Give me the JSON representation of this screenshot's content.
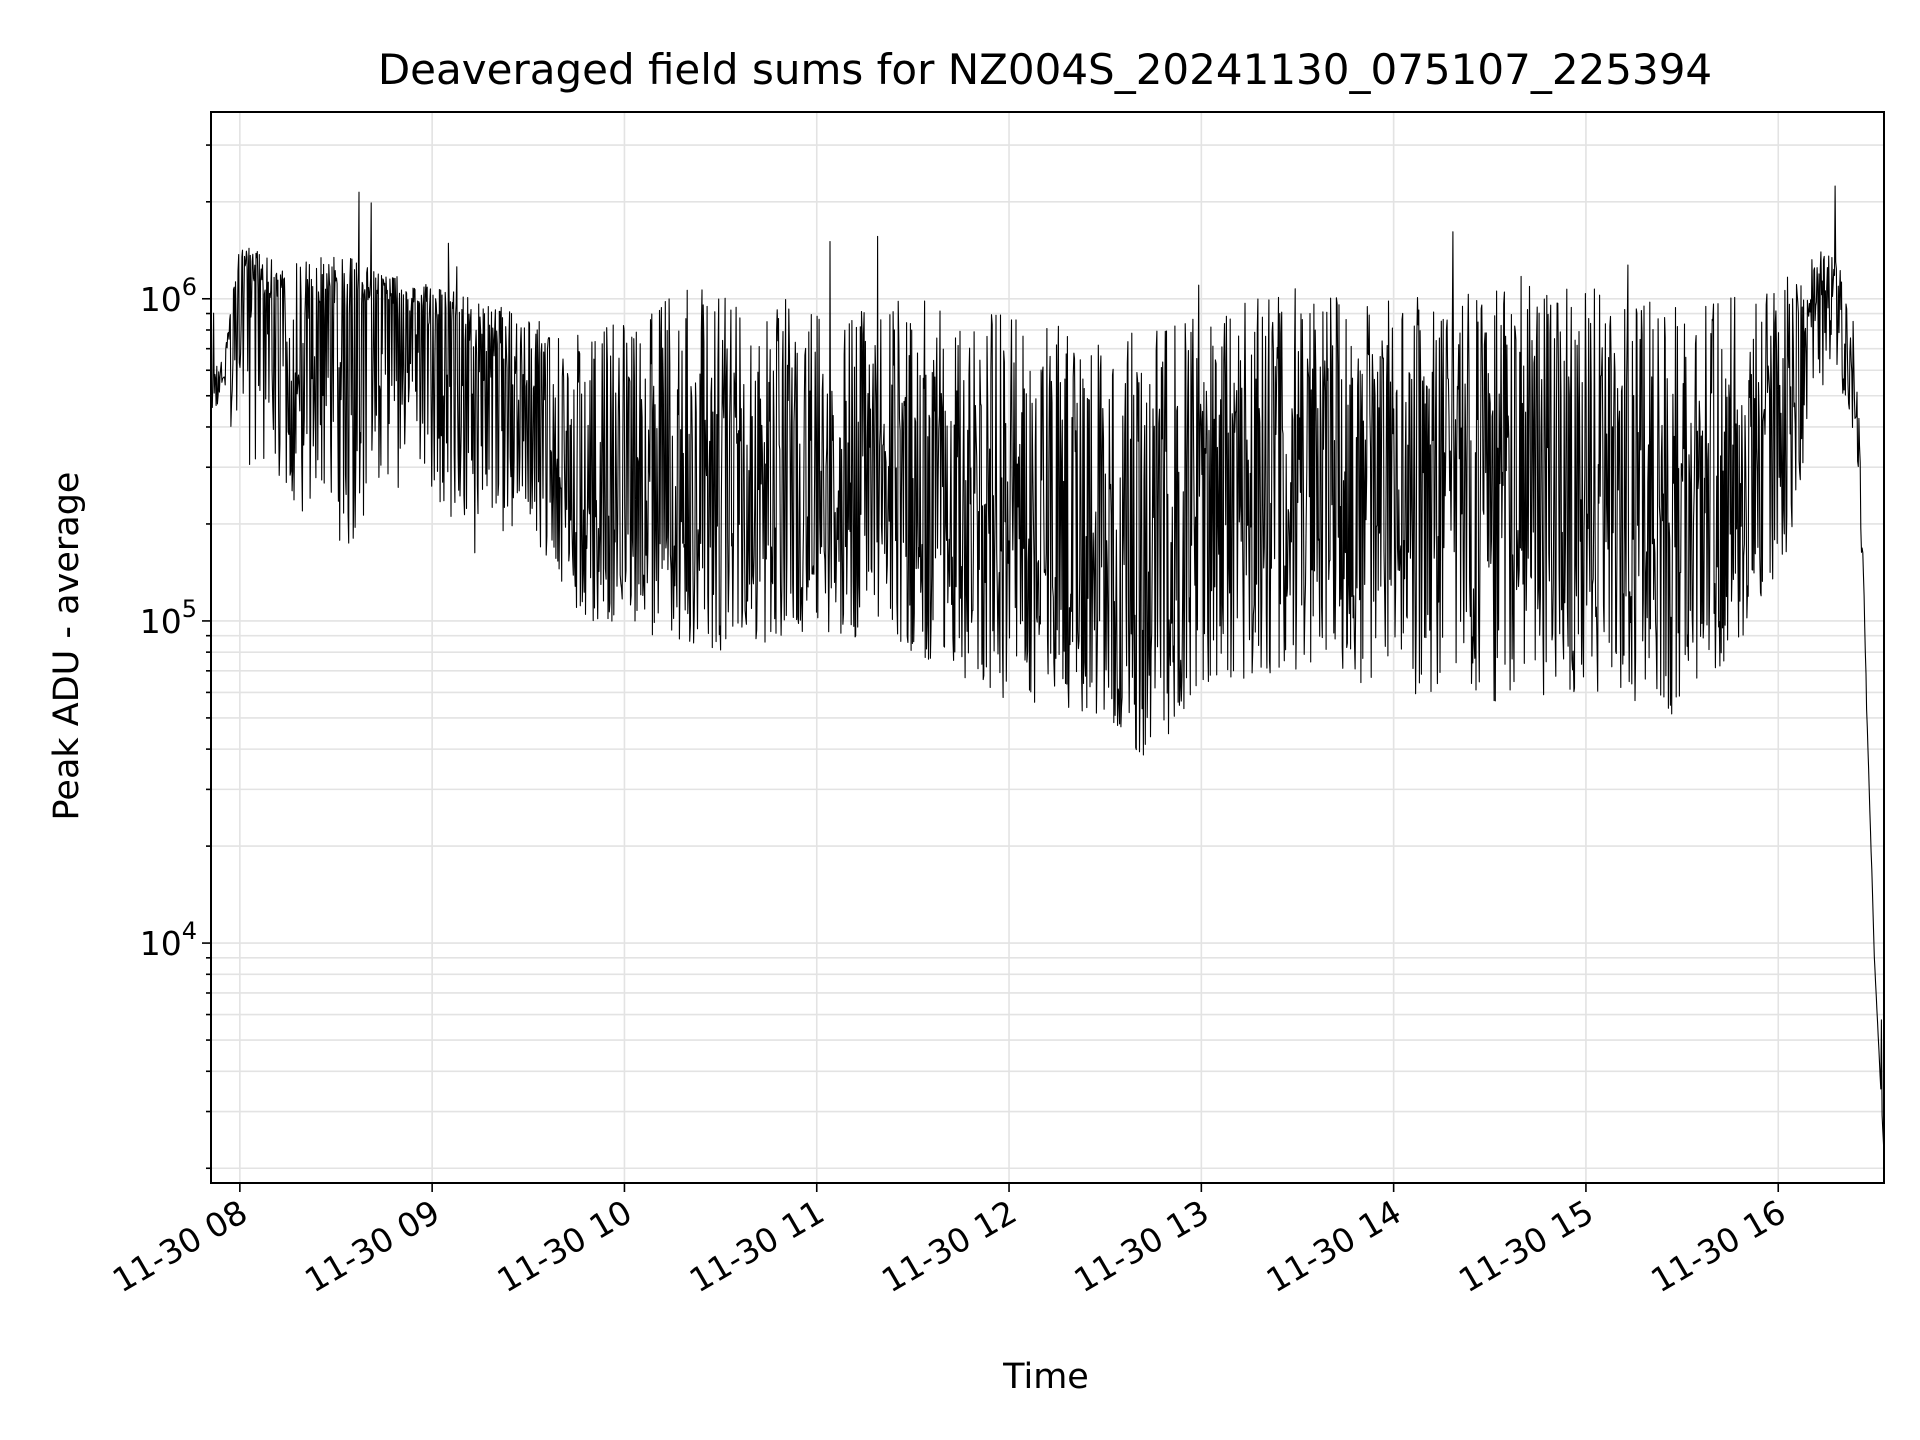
{
  "chart_data": {
    "type": "line",
    "title": "Deaveraged field sums for NZ004S_20241130_075107_225394",
    "xlabel": "Time",
    "ylabel": "Peak ADU - average",
    "yscale": "log",
    "ylim": [
      1800,
      3800000
    ],
    "xlim": [
      "2024-11-30 07:51",
      "2024-11-30 16:33"
    ],
    "x_ticks": [
      {
        "value": "2024-11-30 08:00",
        "label": "11-30 08"
      },
      {
        "value": "2024-11-30 09:00",
        "label": "11-30 09"
      },
      {
        "value": "2024-11-30 10:00",
        "label": "11-30 10"
      },
      {
        "value": "2024-11-30 11:00",
        "label": "11-30 11"
      },
      {
        "value": "2024-11-30 12:00",
        "label": "11-30 12"
      },
      {
        "value": "2024-11-30 13:00",
        "label": "11-30 13"
      },
      {
        "value": "2024-11-30 14:00",
        "label": "11-30 14"
      },
      {
        "value": "2024-11-30 15:00",
        "label": "11-30 15"
      },
      {
        "value": "2024-11-30 16:00",
        "label": "11-30 16"
      }
    ],
    "y_ticks": [
      {
        "value": 10000,
        "base": "10",
        "exp": "4"
      },
      {
        "value": 100000,
        "base": "10",
        "exp": "5"
      },
      {
        "value": 1000000,
        "base": "10",
        "exp": "6"
      }
    ],
    "grid": true,
    "series": [
      {
        "color": "#000000",
        "x": [
          "2024-11-30 07:51",
          "2024-11-30 07:55",
          "2024-11-30 08:00",
          "2024-11-30 08:15",
          "2024-11-30 08:30",
          "2024-11-30 08:45",
          "2024-11-30 09:00",
          "2024-11-30 09:15",
          "2024-11-30 09:30",
          "2024-11-30 09:45",
          "2024-11-30 10:00",
          "2024-11-30 10:30",
          "2024-11-30 11:00",
          "2024-11-30 11:30",
          "2024-11-30 12:00",
          "2024-11-30 12:30",
          "2024-11-30 12:45",
          "2024-11-30 13:00",
          "2024-11-30 13:30",
          "2024-11-30 14:00",
          "2024-11-30 14:30",
          "2024-11-30 15:00",
          "2024-11-30 15:30",
          "2024-11-30 16:00",
          "2024-11-30 16:15",
          "2024-11-30 16:20",
          "2024-11-30 16:25",
          "2024-11-30 16:28",
          "2024-11-30 16:30",
          "2024-11-30 16:33"
        ],
        "y": [
          500000,
          550000,
          1300000,
          700000,
          900000,
          1000000,
          800000,
          600000,
          450000,
          300000,
          250000,
          200000,
          220000,
          250000,
          180000,
          150000,
          100000,
          200000,
          250000,
          300000,
          280000,
          250000,
          200000,
          400000,
          1100000,
          800000,
          400000,
          40000,
          9000,
          2200
        ],
        "y_low": [
          450000,
          480000,
          300000,
          250000,
          150000,
          200000,
          250000,
          150000,
          200000,
          100000,
          90000,
          80000,
          90000,
          80000,
          55000,
          50000,
          35000,
          60000,
          70000,
          60000,
          55000,
          60000,
          50000,
          120000,
          600000,
          500000,
          300000,
          40000,
          9000,
          2200
        ],
        "y_high": [
          600000,
          650000,
          1500000,
          1300000,
          1400000,
          1200000,
          1100000,
          1000000,
          900000,
          800000,
          1000000,
          1100000,
          1000000,
          1000000,
          900000,
          800000,
          800000,
          900000,
          1100000,
          1000000,
          1100000,
          1100000,
          1000000,
          1100000,
          1500000,
          1200000,
          500000,
          45000,
          9000,
          2200
        ]
      }
    ]
  }
}
